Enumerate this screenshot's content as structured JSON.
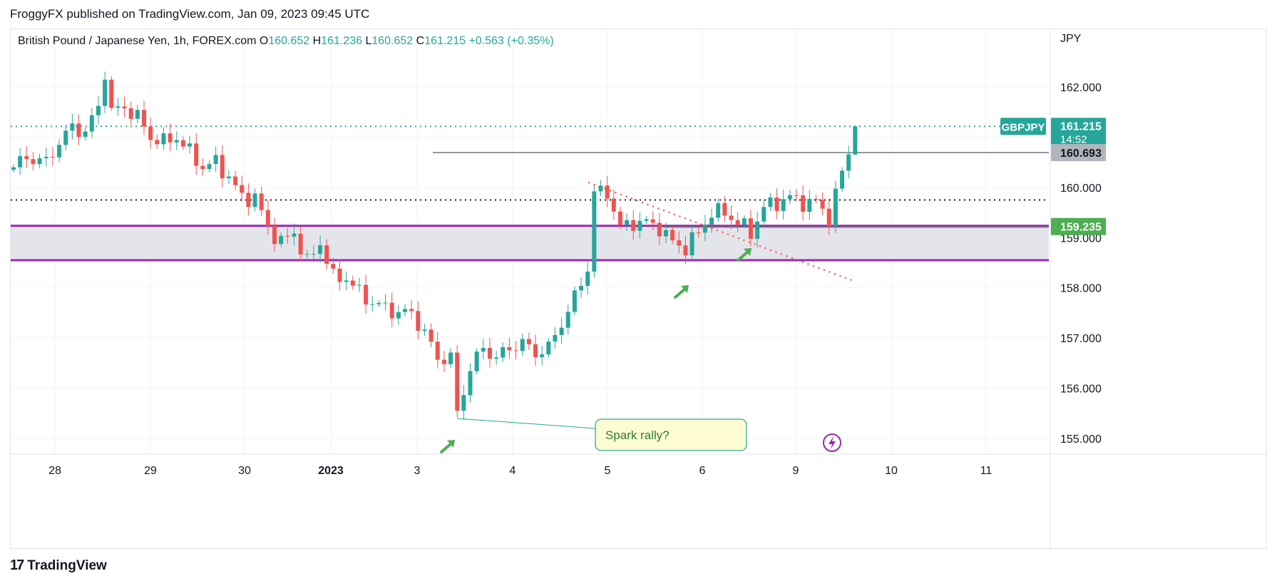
{
  "header": {
    "title": "FroggyFX published on TradingView.com, Jan 09, 2023 09:45 UTC"
  },
  "footer": {
    "logo_icon": "tradingview-logo-icon",
    "brand": "TradingView"
  },
  "colors": {
    "up": "#26a69a",
    "down": "#ef5350",
    "zone": "#9c27b0",
    "zone_fill": "#e4e5ea",
    "grid": "#f0f3fa",
    "callout_fill": "#fdfbd3",
    "callout_border": "#26a69a",
    "arrow": "#4caf50",
    "trend": "#f44336",
    "last_price": "#26a69a",
    "level_gray": "#9598a1",
    "level_green": "#4caf50"
  },
  "legend": {
    "symbol": "British Pound / Japanese Yen, 1h, FOREX.com",
    "o_label": "O",
    "o": "160.652",
    "h_label": "H",
    "h": "161.236",
    "l_label": "L",
    "l": "160.652",
    "c_label": "C",
    "c": "161.215",
    "change": "+0.563 (+0.35%)"
  },
  "chart_data": {
    "type": "candlestick",
    "title": "British Pound / Japanese Yen, 1h, FOREX.com",
    "currency_label": "JPY",
    "y_ticks": [
      162.0,
      161.0,
      160.0,
      159.0,
      158.0,
      157.0,
      156.0,
      155.0
    ],
    "y_tick_labels": [
      "162.000",
      "160.000",
      "159.000",
      "158.000",
      "157.000",
      "156.000",
      "155.000"
    ],
    "y_tick_values": [
      162.0,
      160.0,
      159.0,
      158.0,
      157.0,
      156.0,
      155.0
    ],
    "ylim": [
      154.65,
      163.5
    ],
    "x_labels": [
      "28",
      "29",
      "30",
      "2023",
      "3",
      "4",
      "5",
      "6",
      "9",
      "10",
      "11"
    ],
    "x_label_index": [
      0,
      1,
      2,
      3,
      4,
      5,
      6,
      7,
      8,
      9,
      10
    ],
    "path_points": [
      [
        0,
        160.4
      ],
      [
        2,
        160.6
      ],
      [
        5,
        160.5
      ],
      [
        7,
        160.9
      ],
      [
        9,
        161.2
      ],
      [
        11,
        161.1
      ],
      [
        13,
        161.6
      ],
      [
        14,
        162.3
      ],
      [
        15,
        161.5
      ],
      [
        17,
        161.6
      ],
      [
        19,
        161.4
      ],
      [
        21,
        161.0
      ],
      [
        23,
        160.9
      ],
      [
        25,
        161.0
      ],
      [
        27,
        160.7
      ],
      [
        29,
        160.4
      ],
      [
        31,
        160.5
      ],
      [
        33,
        160.2
      ],
      [
        35,
        159.8
      ],
      [
        37,
        159.8
      ],
      [
        39,
        159.2
      ],
      [
        41,
        158.9
      ],
      [
        43,
        159.1
      ],
      [
        45,
        158.5
      ],
      [
        47,
        158.9
      ],
      [
        49,
        158.2
      ],
      [
        51,
        158.2
      ],
      [
        53,
        157.9
      ],
      [
        55,
        157.7
      ],
      [
        57,
        157.6
      ],
      [
        59,
        157.5
      ],
      [
        61,
        157.5
      ],
      [
        63,
        157.1
      ],
      [
        65,
        156.6
      ],
      [
        67,
        156.6
      ],
      [
        68,
        155.5
      ],
      [
        70,
        156.4
      ],
      [
        72,
        156.8
      ],
      [
        74,
        156.6
      ],
      [
        76,
        156.8
      ],
      [
        78,
        156.9
      ],
      [
        80,
        156.7
      ],
      [
        82,
        156.8
      ],
      [
        84,
        157.3
      ],
      [
        86,
        157.8
      ],
      [
        88,
        158.4
      ],
      [
        89,
        159.9
      ],
      [
        91,
        159.9
      ],
      [
        93,
        159.2
      ],
      [
        95,
        159.3
      ],
      [
        97,
        159.3
      ],
      [
        99,
        159.2
      ],
      [
        101,
        158.9
      ],
      [
        103,
        158.8
      ],
      [
        105,
        159.1
      ],
      [
        107,
        159.5
      ],
      [
        109,
        159.5
      ],
      [
        111,
        159.3
      ],
      [
        113,
        159.1
      ],
      [
        115,
        159.6
      ],
      [
        117,
        159.7
      ],
      [
        119,
        159.8
      ],
      [
        121,
        159.7
      ],
      [
        123,
        159.7
      ],
      [
        125,
        159.4
      ],
      [
        127,
        160.3
      ],
      [
        128,
        160.69
      ],
      [
        129,
        161.215
      ]
    ],
    "last_candle": {
      "open": 160.652,
      "high": 161.236,
      "low": 160.652,
      "close": 161.215
    },
    "price_labels": [
      {
        "symbol": "GBPJPY",
        "price": "161.215",
        "countdown": "14:52",
        "value": 161.215
      },
      {
        "price": "160.693",
        "value": 160.693
      },
      {
        "price": "159.235",
        "value": 159.235
      }
    ],
    "levels": {
      "resistance_line": 160.693,
      "dotted_black": 159.75,
      "zone_top": 159.235,
      "zone_bottom": 158.55
    },
    "trendline": {
      "from": [
        91,
        160.1
      ],
      "to": [
        131,
        158.15
      ]
    },
    "callout": {
      "text": "Spark rally?",
      "anchor": [
        68,
        155.4
      ]
    },
    "arrows": [
      [
        67,
        155.1
      ],
      [
        103,
        158.3
      ],
      [
        115,
        158.9
      ]
    ]
  }
}
